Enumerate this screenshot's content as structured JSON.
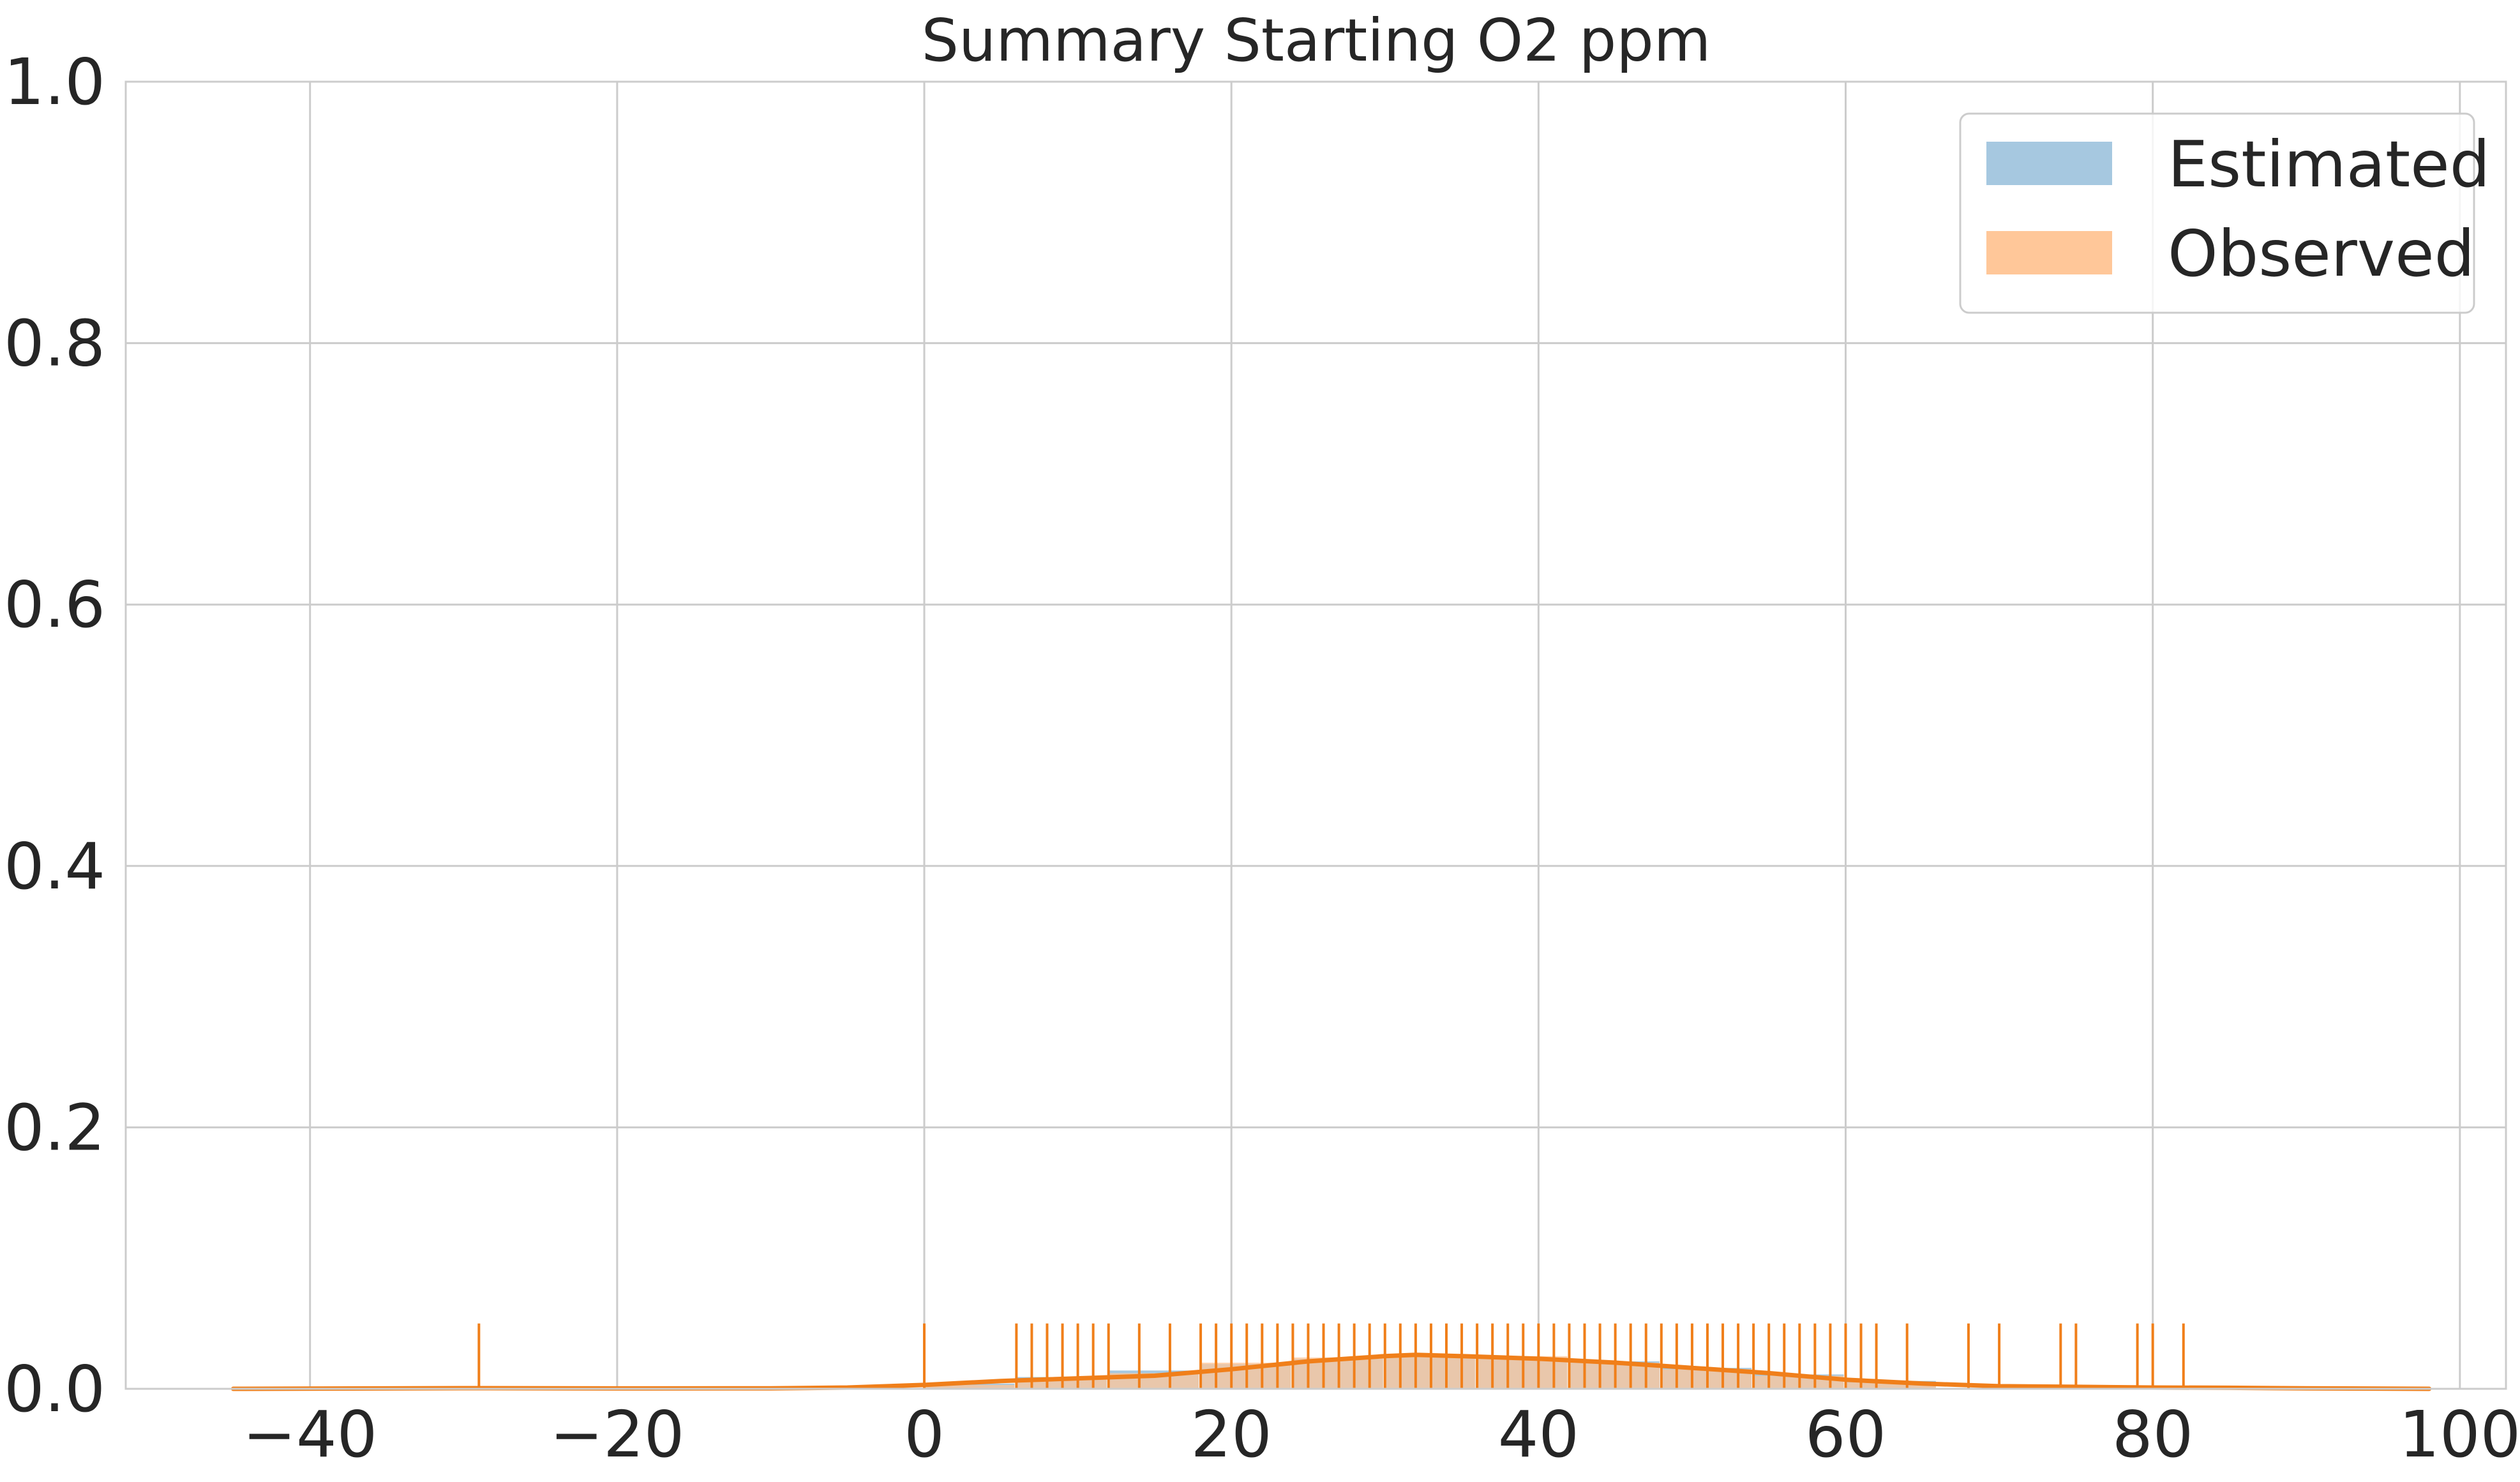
{
  "chart_data": {
    "type": "histogram",
    "title": "Summary Starting O2 ppm",
    "xlabel": "",
    "ylabel": "",
    "xlim": [
      -52,
      103
    ],
    "ylim": [
      0,
      1.0
    ],
    "x_ticks": [
      -40,
      -20,
      0,
      20,
      40,
      60,
      80,
      100
    ],
    "x_tick_labels": [
      "−40",
      "−20",
      "0",
      "20",
      "40",
      "60",
      "80",
      "100"
    ],
    "y_ticks": [
      0.0,
      0.2,
      0.4,
      0.6,
      0.8,
      1.0
    ],
    "y_tick_labels": [
      "0.0",
      "0.2",
      "0.4",
      "0.6",
      "0.8",
      "1.0"
    ],
    "grid": true,
    "legend_position": "top-right",
    "series": [
      {
        "name": "Estimated",
        "color": "#a6c8e0",
        "bin_width": 6,
        "bins": [
          {
            "x0": 0,
            "x1": 6,
            "value": 0.004
          },
          {
            "x0": 6,
            "x1": 12,
            "value": 0.009
          },
          {
            "x0": 12,
            "x1": 18,
            "value": 0.014
          },
          {
            "x0": 18,
            "x1": 24,
            "value": 0.019
          },
          {
            "x0": 24,
            "x1": 30,
            "value": 0.023
          },
          {
            "x0": 30,
            "x1": 36,
            "value": 0.025
          },
          {
            "x0": 36,
            "x1": 42,
            "value": 0.024
          },
          {
            "x0": 42,
            "x1": 48,
            "value": 0.021
          },
          {
            "x0": 48,
            "x1": 54,
            "value": 0.016
          },
          {
            "x0": 54,
            "x1": 60,
            "value": 0.011
          },
          {
            "x0": 60,
            "x1": 66,
            "value": 0.006
          }
        ]
      },
      {
        "name": "Observed",
        "color": "#ffc799",
        "line_color": "#f07f1a",
        "bin_width": 6,
        "bins": [
          {
            "x0": 0,
            "x1": 6,
            "value": 0.003
          },
          {
            "x0": 6,
            "x1": 12,
            "value": 0.008
          },
          {
            "x0": 12,
            "x1": 18,
            "value": 0.012
          },
          {
            "x0": 18,
            "x1": 24,
            "value": 0.02
          },
          {
            "x0": 24,
            "x1": 30,
            "value": 0.024
          },
          {
            "x0": 30,
            "x1": 36,
            "value": 0.026
          },
          {
            "x0": 36,
            "x1": 42,
            "value": 0.025
          },
          {
            "x0": 42,
            "x1": 48,
            "value": 0.02
          },
          {
            "x0": 48,
            "x1": 54,
            "value": 0.015
          },
          {
            "x0": 54,
            "x1": 60,
            "value": 0.01
          },
          {
            "x0": 60,
            "x1": 66,
            "value": 0.005
          }
        ],
        "kde": {
          "x": [
            -45,
            -30,
            -20,
            -10,
            -5,
            0,
            5,
            10,
            15,
            20,
            25,
            30,
            32,
            35,
            40,
            45,
            50,
            55,
            60,
            65,
            70,
            75,
            80,
            85,
            90,
            98
          ],
          "y": [
            0.0,
            0.0005,
            0.0003,
            0.0004,
            0.001,
            0.003,
            0.006,
            0.008,
            0.01,
            0.015,
            0.021,
            0.025,
            0.026,
            0.025,
            0.023,
            0.02,
            0.016,
            0.012,
            0.007,
            0.004,
            0.002,
            0.0015,
            0.001,
            0.0008,
            0.0004,
            0.0
          ]
        },
        "rug_height": 0.05,
        "rug": [
          -29,
          0,
          6,
          7,
          8,
          9,
          10,
          11,
          12,
          14,
          16,
          18,
          19,
          20,
          21,
          22,
          23,
          24,
          25,
          26,
          27,
          28,
          29,
          30,
          31,
          32,
          33,
          34,
          35,
          36,
          37,
          38,
          39,
          40,
          41,
          42,
          43,
          44,
          45,
          46,
          47,
          48,
          49,
          50,
          51,
          52,
          53,
          54,
          55,
          56,
          57,
          58,
          59,
          60,
          61,
          62,
          64,
          68,
          70,
          74,
          75,
          79,
          80,
          82
        ]
      }
    ]
  }
}
